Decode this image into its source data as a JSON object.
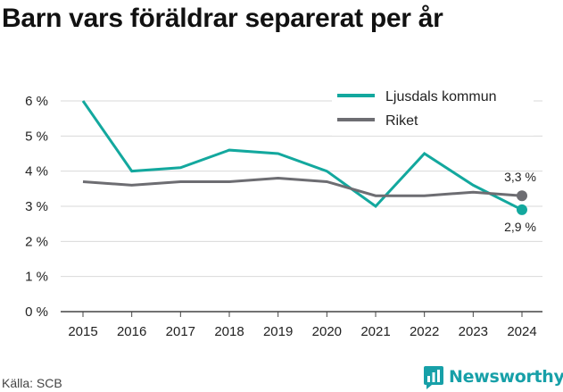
{
  "title": "Barn vars föräldrar separerat per år",
  "source": "Källa: SCB",
  "brand": "Newsworthy",
  "colors": {
    "series_1": "#13a89e",
    "series_2": "#6d6d72",
    "grid": "#d9d9d9",
    "brand": "#17a0a8"
  },
  "icons": {
    "brand": "newsworthy-chart-bubble-icon"
  },
  "chart_data": {
    "type": "line",
    "title": "Barn vars föräldrar separerat per år",
    "xlabel": "",
    "ylabel": "",
    "categories": [
      "2015",
      "2016",
      "2017",
      "2018",
      "2019",
      "2020",
      "2021",
      "2022",
      "2023",
      "2024"
    ],
    "series": [
      {
        "name": "Ljusdals kommun",
        "values": [
          6.0,
          4.0,
          4.1,
          4.6,
          4.5,
          4.0,
          3.0,
          4.5,
          3.6,
          2.9
        ],
        "end_label": "2,9 %"
      },
      {
        "name": "Riket",
        "values": [
          3.7,
          3.6,
          3.7,
          3.7,
          3.8,
          3.7,
          3.3,
          3.3,
          3.4,
          3.3
        ],
        "end_label": "3,3 %"
      }
    ],
    "yticks": [
      0,
      1,
      2,
      3,
      4,
      5,
      6
    ],
    "ytick_labels": [
      "0 %",
      "1 %",
      "2 %",
      "3 %",
      "4 %",
      "5 %",
      "6 %"
    ],
    "ylim": [
      0,
      6
    ],
    "grid": "horizontal",
    "legend": "top-right"
  }
}
